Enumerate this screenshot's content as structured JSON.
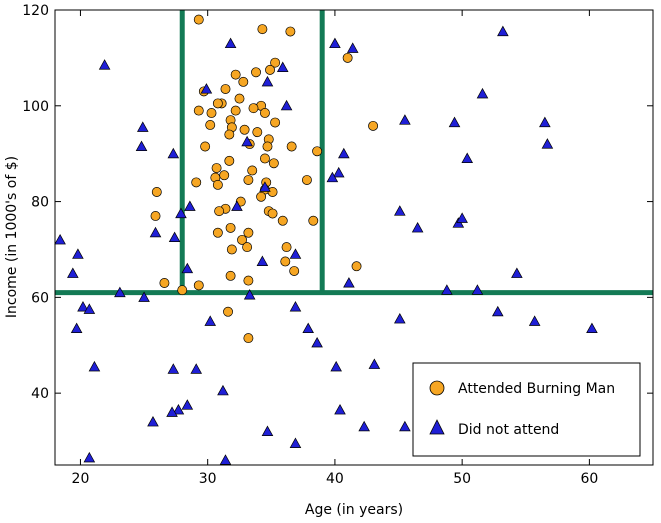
{
  "chart_data": {
    "type": "scatter",
    "title": "",
    "xlabel": "Age (in years)",
    "ylabel": "Income (in 1000's of $)",
    "xlim": [
      18,
      65
    ],
    "ylim": [
      25,
      120
    ],
    "xticks": [
      20,
      30,
      40,
      50,
      60
    ],
    "yticks": [
      40,
      60,
      80,
      100,
      120
    ],
    "grid": false,
    "legend_position": "lower-right",
    "boundaries": {
      "color": "#137a55",
      "vertical_x": [
        28,
        39
      ],
      "horizontal_y": 61
    },
    "series": [
      {
        "name": "Attended Burning Man",
        "marker": "circle",
        "color": "#f6a623",
        "points": [
          [
            29.3,
            118
          ],
          [
            34.3,
            116
          ],
          [
            36.5,
            115.5
          ],
          [
            35.3,
            109
          ],
          [
            34.9,
            107.5
          ],
          [
            33.8,
            107
          ],
          [
            32.2,
            106.5
          ],
          [
            32.8,
            105
          ],
          [
            31.4,
            103.5
          ],
          [
            29.7,
            103
          ],
          [
            32.5,
            101.5
          ],
          [
            31.1,
            100.5
          ],
          [
            34.2,
            100
          ],
          [
            30.8,
            100.5
          ],
          [
            33.6,
            99.5
          ],
          [
            29.3,
            99
          ],
          [
            32.2,
            99
          ],
          [
            30.3,
            98.5
          ],
          [
            34.5,
            98.5
          ],
          [
            31.8,
            97
          ],
          [
            35.3,
            96.5
          ],
          [
            30.2,
            96
          ],
          [
            31.9,
            95.5
          ],
          [
            32.9,
            95
          ],
          [
            31.7,
            94
          ],
          [
            33.9,
            94.5
          ],
          [
            34.8,
            93
          ],
          [
            33.3,
            92
          ],
          [
            29.8,
            91.5
          ],
          [
            34.7,
            91.5
          ],
          [
            36.6,
            91.5
          ],
          [
            38.6,
            90.5
          ],
          [
            34.5,
            89
          ],
          [
            31.7,
            88.5
          ],
          [
            30.7,
            87
          ],
          [
            35.2,
            88
          ],
          [
            33.5,
            86.5
          ],
          [
            30.6,
            85
          ],
          [
            33.2,
            84.5
          ],
          [
            31.3,
            85.5
          ],
          [
            30.8,
            83.5
          ],
          [
            34.6,
            84
          ],
          [
            37.8,
            84.5
          ],
          [
            29.1,
            84
          ],
          [
            34.5,
            82.5
          ],
          [
            35.1,
            82
          ],
          [
            34.2,
            81
          ],
          [
            26.0,
            82
          ],
          [
            32.6,
            80
          ],
          [
            31.4,
            78.5
          ],
          [
            34.8,
            78
          ],
          [
            30.9,
            78
          ],
          [
            35.1,
            77.5
          ],
          [
            25.9,
            77
          ],
          [
            35.9,
            76
          ],
          [
            38.3,
            76
          ],
          [
            31.8,
            74.5
          ],
          [
            33.2,
            73.5
          ],
          [
            30.8,
            73.5
          ],
          [
            32.7,
            72
          ],
          [
            33.1,
            70.5
          ],
          [
            36.2,
            70.5
          ],
          [
            31.9,
            70
          ],
          [
            36.1,
            67.5
          ],
          [
            41.7,
            66.5
          ],
          [
            36.8,
            65.5
          ],
          [
            33.2,
            63.5
          ],
          [
            31.8,
            64.5
          ],
          [
            26.6,
            63
          ],
          [
            29.3,
            62.5
          ],
          [
            28.0,
            61.5
          ],
          [
            31.6,
            57
          ],
          [
            33.2,
            51.5
          ],
          [
            43.0,
            95.8
          ],
          [
            41.0,
            110
          ]
        ]
      },
      {
        "name": "Did not attend",
        "marker": "triangle",
        "color": "#1f1fd6",
        "points": [
          [
            21.9,
            108.5
          ],
          [
            29.9,
            103.5
          ],
          [
            31.8,
            113
          ],
          [
            35.9,
            108
          ],
          [
            40.0,
            113
          ],
          [
            41.4,
            112
          ],
          [
            34.7,
            105
          ],
          [
            36.2,
            100
          ],
          [
            24.9,
            95.5
          ],
          [
            24.8,
            91.5
          ],
          [
            33.1,
            92.5
          ],
          [
            27.3,
            90
          ],
          [
            45.5,
            97
          ],
          [
            49.4,
            96.5
          ],
          [
            51.6,
            102.5
          ],
          [
            53.2,
            115.5
          ],
          [
            56.5,
            96.5
          ],
          [
            56.7,
            92
          ],
          [
            50.4,
            89
          ],
          [
            40.7,
            90
          ],
          [
            40.3,
            86
          ],
          [
            39.8,
            85
          ],
          [
            34.5,
            83
          ],
          [
            28.6,
            79
          ],
          [
            27.9,
            77.5
          ],
          [
            32.3,
            79
          ],
          [
            45.1,
            78
          ],
          [
            46.5,
            74.5
          ],
          [
            49.7,
            75.5
          ],
          [
            50.0,
            76.5
          ],
          [
            25.9,
            73.5
          ],
          [
            27.4,
            72.5
          ],
          [
            18.4,
            72
          ],
          [
            19.8,
            69
          ],
          [
            36.9,
            69
          ],
          [
            34.3,
            67.5
          ],
          [
            19.4,
            65
          ],
          [
            28.4,
            66
          ],
          [
            41.1,
            63
          ],
          [
            33.3,
            60.5
          ],
          [
            23.1,
            61
          ],
          [
            25.0,
            60
          ],
          [
            48.8,
            61.5
          ],
          [
            51.2,
            61.5
          ],
          [
            54.3,
            65
          ],
          [
            19.7,
            53.5
          ],
          [
            20.2,
            58
          ],
          [
            20.7,
            57.5
          ],
          [
            36.9,
            58
          ],
          [
            37.9,
            53.5
          ],
          [
            38.6,
            50.5
          ],
          [
            30.2,
            55
          ],
          [
            45.1,
            55.5
          ],
          [
            52.8,
            57
          ],
          [
            55.7,
            55
          ],
          [
            60.2,
            53.5
          ],
          [
            21.1,
            45.5
          ],
          [
            27.3,
            45
          ],
          [
            29.1,
            45
          ],
          [
            40.1,
            45.5
          ],
          [
            43.1,
            46
          ],
          [
            31.2,
            40.5
          ],
          [
            28.4,
            37.5
          ],
          [
            27.7,
            36.5
          ],
          [
            27.2,
            36
          ],
          [
            40.4,
            36.5
          ],
          [
            25.7,
            34
          ],
          [
            34.7,
            32
          ],
          [
            42.3,
            33
          ],
          [
            45.5,
            33
          ],
          [
            36.9,
            29.5
          ],
          [
            20.7,
            26.5
          ],
          [
            31.4,
            26
          ]
        ]
      }
    ]
  }
}
